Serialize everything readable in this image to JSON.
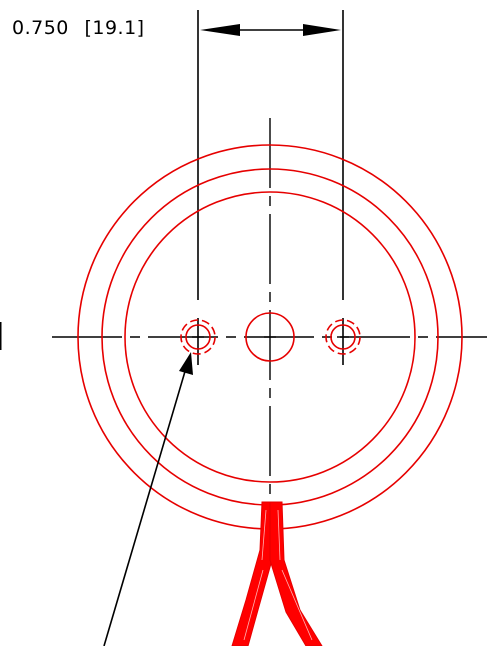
{
  "dimension": {
    "value_text": "0.750",
    "metric_text": "[19.1]"
  },
  "colors": {
    "geometry": "#e60000",
    "annotation": "#000000",
    "lead_fill": "#ff0000"
  }
}
